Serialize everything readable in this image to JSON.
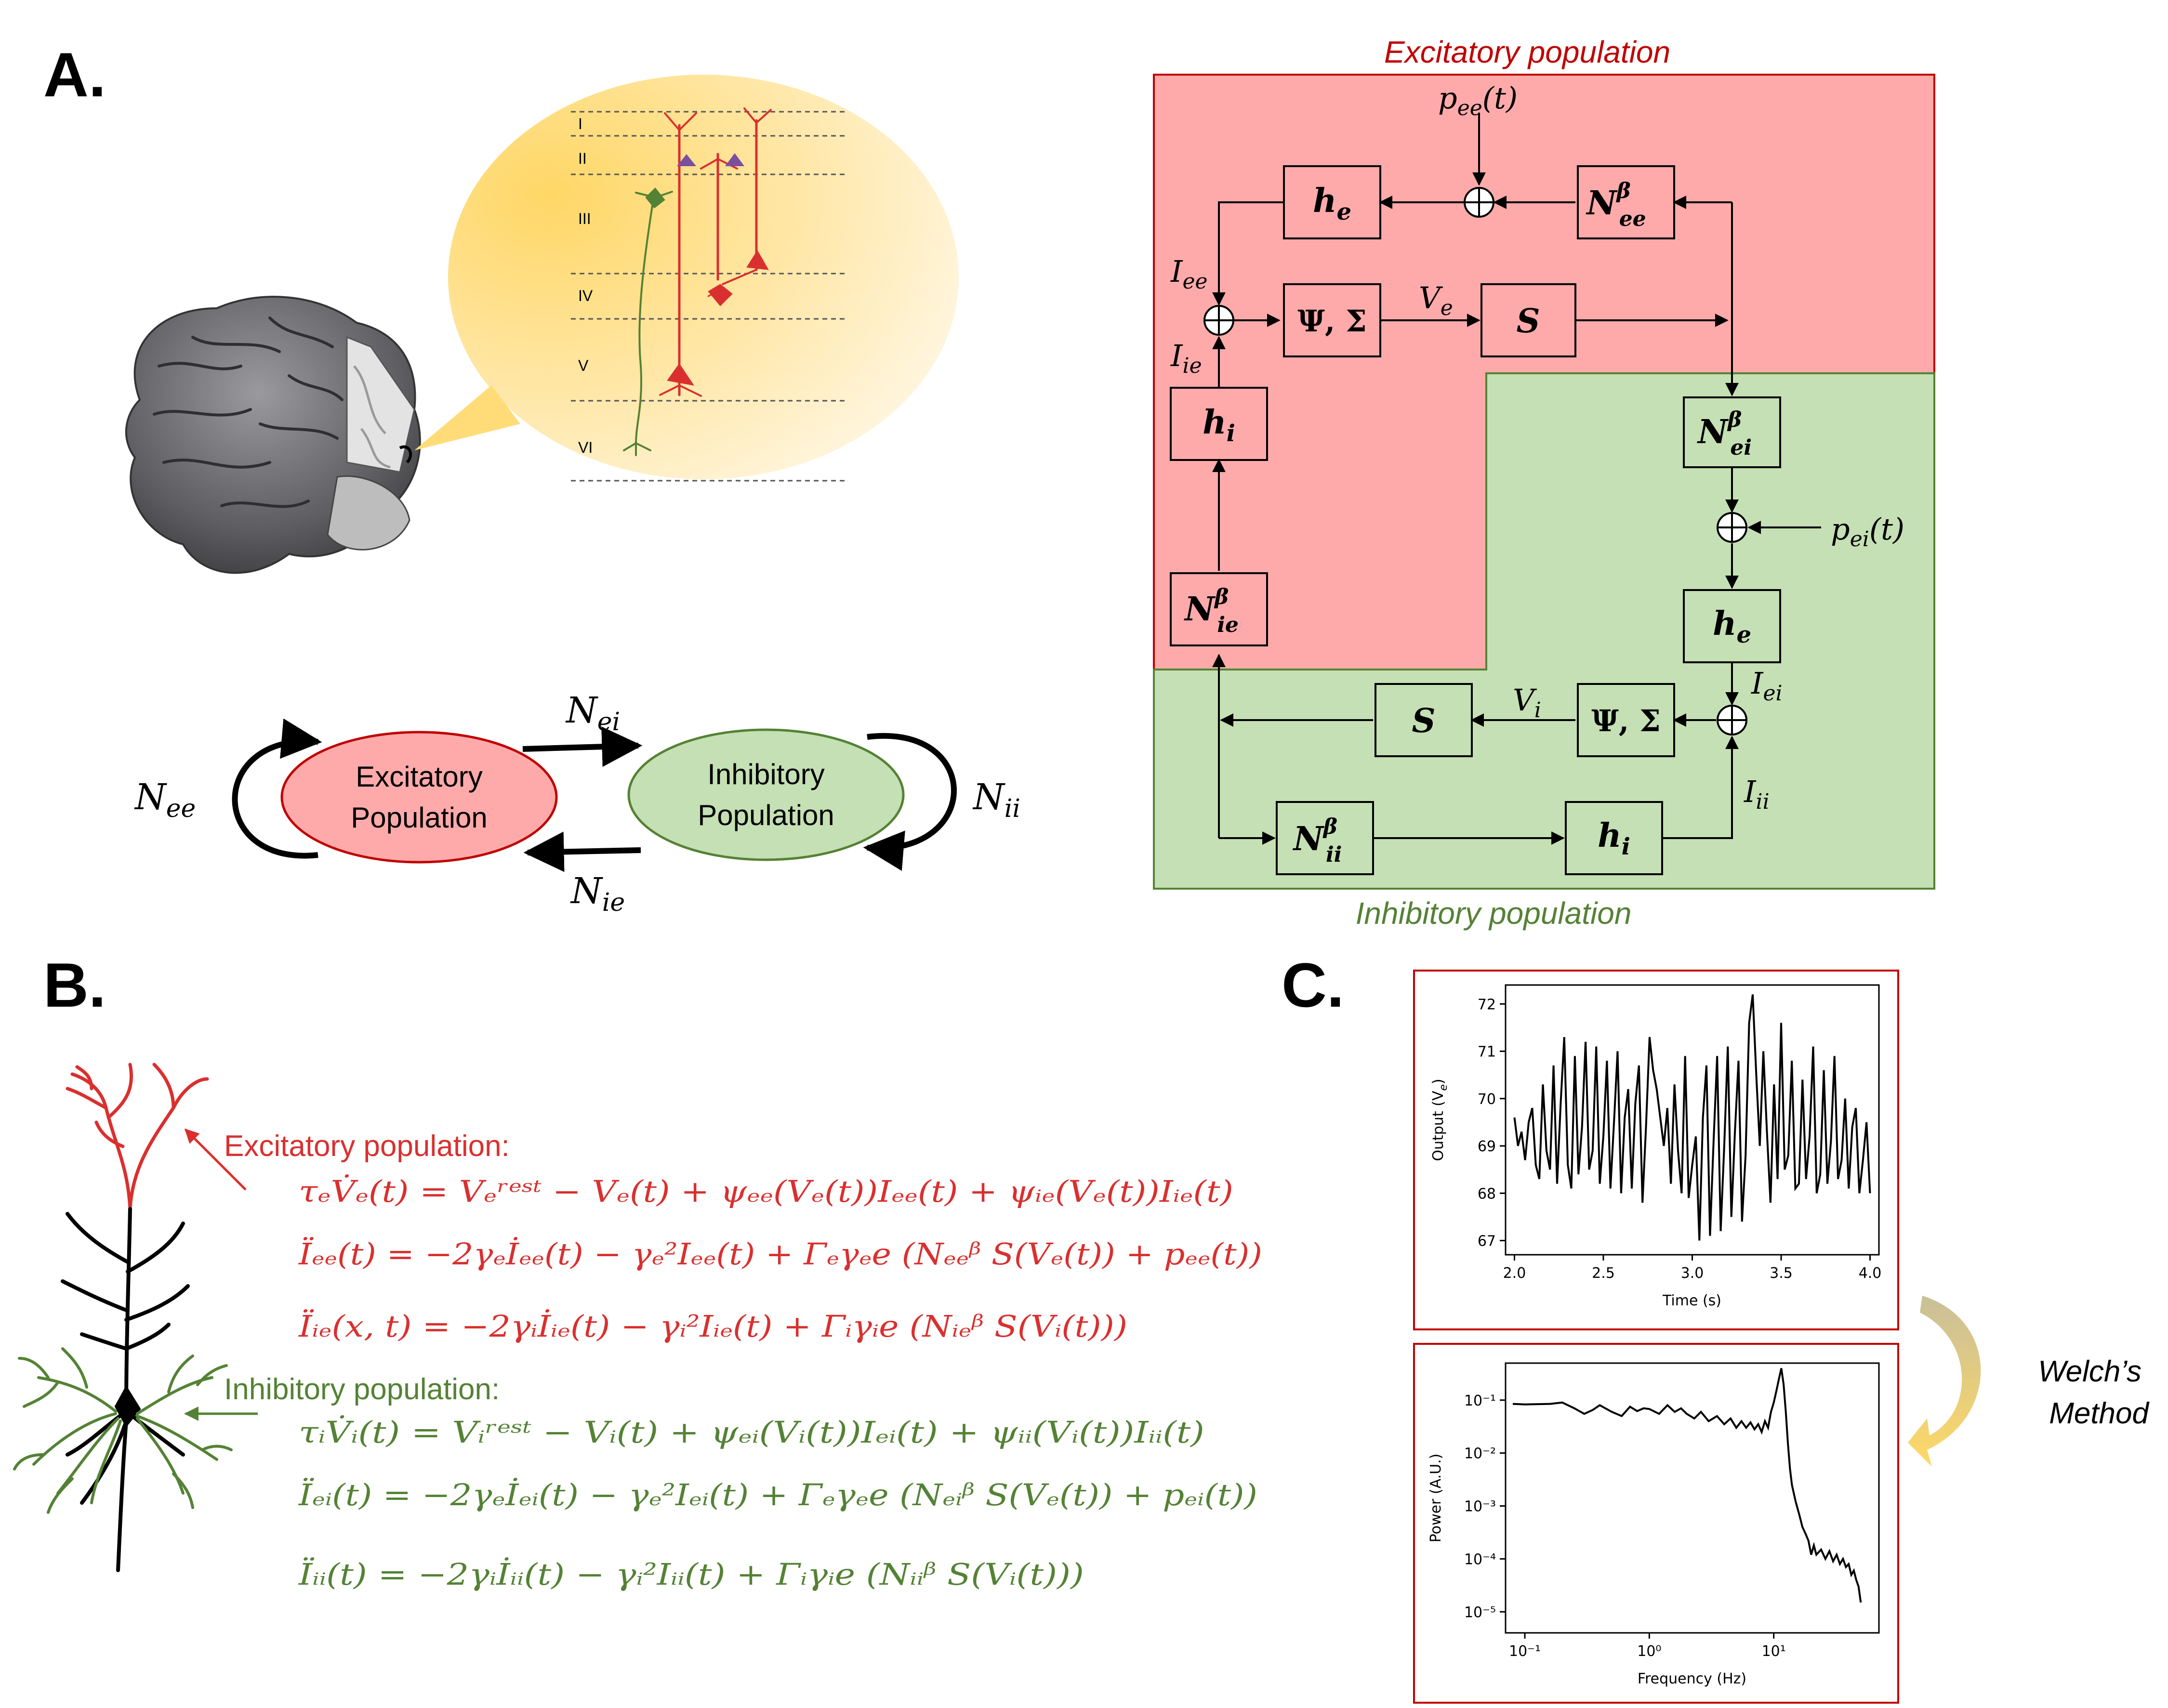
{
  "panel_labels": {
    "a": "A.",
    "b": "B.",
    "c": "C."
  },
  "cortex_layers": [
    "I",
    "II",
    "III",
    "IV",
    "V",
    "VI"
  ],
  "populations": {
    "excitatory": "Excitatory Population",
    "excitatory_line1": "Excitatory",
    "excitatory_line2": "Population",
    "inhibitory_line1": "Inhibitory",
    "inhibitory_line2": "Population",
    "n_ee": "N",
    "n_ee_sub": "ee",
    "n_ei": "N",
    "n_ei_sub": "ei",
    "n_ie": "N",
    "n_ie_sub": "ie",
    "n_ii": "N",
    "n_ii_sub": "ii"
  },
  "block_diagram": {
    "title_excitatory": "Excitatory population",
    "title_inhibitory": "Inhibitory population",
    "colors": {
      "excitatory_bg": "#ffaaaa",
      "inhibitory_bg": "#c5e0b4",
      "excitatory_border": "#c00000",
      "inhibitory_border": "#548235"
    },
    "blocks": {
      "he_top": {
        "main": "h",
        "sub": "e"
      },
      "nee": {
        "main": "N",
        "sup": "β",
        "sub": "ee"
      },
      "psi_e": {
        "main": "Ψ, Σ"
      },
      "s_e": {
        "main": "S"
      },
      "hi_left": {
        "main": "h",
        "sub": "i"
      },
      "nie": {
        "main": "N",
        "sup": "β",
        "sub": "ie"
      },
      "nei": {
        "main": "N",
        "sup": "β",
        "sub": "ei"
      },
      "he_right": {
        "main": "h",
        "sub": "e"
      },
      "psi_i": {
        "main": "Ψ, Σ"
      },
      "s_i": {
        "main": "S"
      },
      "nii": {
        "main": "N",
        "sup": "β",
        "sub": "ii"
      },
      "hi_bottom": {
        "main": "h",
        "sub": "i"
      }
    },
    "signals": {
      "pee": {
        "main": "p",
        "sub": "ee",
        "arg": "(t)"
      },
      "pei": {
        "main": "p",
        "sub": "ei",
        "arg": "(t)"
      },
      "iee": {
        "main": "I",
        "sub": "ee"
      },
      "iie": {
        "main": "I",
        "sub": "ie"
      },
      "ve": {
        "main": "V",
        "sub": "e"
      },
      "vi": {
        "main": "V",
        "sub": "i"
      },
      "iei": {
        "main": "I",
        "sub": "ei"
      },
      "iii": {
        "main": "I",
        "sub": "ii"
      }
    }
  },
  "equations": {
    "excitatory_heading": "Excitatory population:",
    "inhibitory_heading": "Inhibitory population:",
    "excitatory": [
      "τₑV̇ₑ(t) = Vₑʳᵉˢᵗ − Vₑ(t) + ψₑₑ(Vₑ(t))Iₑₑ(t) + ψᵢₑ(Vₑ(t))Iᵢₑ(t)",
      "Ïₑₑ(t) = −2γₑİₑₑ(t) − γₑ²Iₑₑ(t) + Γₑγₑe (Nₑₑᵝ S(Vₑ(t)) + pₑₑ(t))",
      "Ïᵢₑ(x, t) = −2γᵢİᵢₑ(t) − γᵢ²Iᵢₑ(t) + Γᵢγᵢe (Nᵢₑᵝ S(Vᵢ(t)))"
    ],
    "inhibitory": [
      "τᵢV̇ᵢ(t) = Vᵢʳᵉˢᵗ − Vᵢ(t) + ψₑᵢ(Vᵢ(t))Iₑᵢ(t) + ψᵢᵢ(Vᵢ(t))Iᵢᵢ(t)",
      "Ïₑᵢ(t) = −2γₑİₑᵢ(t) − γₑ²Iₑᵢ(t) + Γₑγₑe (Nₑᵢᵝ S(Vₑ(t)) + pₑᵢ(t))",
      "Ïᵢᵢ(t) = −2γᵢİᵢᵢ(t) − γᵢ²Iᵢᵢ(t) + Γᵢγᵢe (Nᵢᵢᵝ S(Vᵢ(t)))"
    ],
    "colors": {
      "excitatory": "#d9302f",
      "inhibitory": "#548235"
    }
  },
  "welch_label_line1": "Welch’s",
  "welch_label_line2": "Method",
  "chart_data": [
    {
      "type": "line",
      "xlabel": "Time (s)",
      "ylabel": "Output (V_e)",
      "ylabel_main": "Output (V",
      "ylabel_sub": "e",
      "ylabel_end": ")",
      "xlim": [
        1.95,
        4.05
      ],
      "ylim": [
        66.7,
        72.4
      ],
      "xticks": [
        2.0,
        2.5,
        3.0,
        3.5,
        4.0
      ],
      "xtick_labels": [
        "2.0",
        "2.5",
        "3.0",
        "3.5",
        "4.0"
      ],
      "yticks": [
        67,
        68,
        69,
        70,
        71,
        72
      ],
      "ytick_labels": [
        "67",
        "68",
        "69",
        "70",
        "71",
        "72"
      ],
      "x": [
        2.0,
        2.02,
        2.04,
        2.06,
        2.08,
        2.1,
        2.12,
        2.14,
        2.16,
        2.18,
        2.2,
        2.22,
        2.24,
        2.26,
        2.28,
        2.3,
        2.32,
        2.34,
        2.36,
        2.38,
        2.4,
        2.42,
        2.44,
        2.46,
        2.48,
        2.5,
        2.52,
        2.54,
        2.56,
        2.58,
        2.6,
        2.62,
        2.64,
        2.66,
        2.68,
        2.7,
        2.72,
        2.74,
        2.76,
        2.78,
        2.8,
        2.82,
        2.84,
        2.86,
        2.88,
        2.9,
        2.92,
        2.94,
        2.96,
        2.98,
        3.0,
        3.02,
        3.04,
        3.06,
        3.08,
        3.1,
        3.12,
        3.14,
        3.16,
        3.18,
        3.2,
        3.22,
        3.24,
        3.26,
        3.28,
        3.3,
        3.32,
        3.34,
        3.36,
        3.38,
        3.4,
        3.42,
        3.44,
        3.46,
        3.48,
        3.5,
        3.52,
        3.54,
        3.56,
        3.58,
        3.6,
        3.62,
        3.64,
        3.66,
        3.68,
        3.7,
        3.72,
        3.74,
        3.76,
        3.78,
        3.8,
        3.82,
        3.84,
        3.86,
        3.88,
        3.9,
        3.92,
        3.94,
        3.96,
        3.98,
        4.0
      ],
      "y": [
        69.6,
        69.0,
        69.3,
        68.7,
        69.5,
        69.8,
        68.6,
        68.3,
        70.3,
        68.9,
        68.5,
        70.7,
        68.2,
        69.9,
        71.3,
        68.6,
        68.1,
        70.9,
        68.4,
        69.4,
        71.2,
        68.5,
        68.9,
        71.1,
        68.2,
        69.2,
        70.8,
        68.1,
        69.5,
        71.0,
        68.0,
        69.6,
        70.2,
        68.1,
        69.9,
        70.7,
        67.8,
        69.4,
        71.3,
        70.6,
        70.2,
        69.6,
        69.0,
        69.8,
        68.2,
        70.3,
        68.9,
        68.0,
        70.9,
        67.9,
        68.6,
        69.2,
        67.0,
        69.6,
        70.7,
        67.1,
        69.1,
        70.9,
        67.2,
        69.0,
        71.1,
        67.5,
        69.3,
        70.8,
        67.4,
        68.8,
        71.6,
        72.2,
        70.5,
        69.0,
        71.0,
        69.3,
        67.8,
        70.3,
        68.3,
        71.6,
        68.5,
        68.8,
        70.8,
        68.1,
        68.2,
        70.4,
        68.3,
        69.2,
        71.1,
        68.0,
        68.4,
        70.6,
        68.2,
        69.1,
        70.9,
        68.3,
        68.7,
        70.0,
        68.1,
        69.4,
        69.8,
        68.0,
        68.7,
        69.5,
        68.0
      ]
    },
    {
      "type": "line",
      "xlabel": "Frequency (Hz)",
      "ylabel": "Power (A.U.)",
      "xscale": "log",
      "yscale": "log",
      "xlim": [
        0.07,
        70
      ],
      "ylim": [
        4e-06,
        0.5
      ],
      "xticks": [
        0.1,
        1,
        10
      ],
      "xtick_labels": [
        "10⁻¹",
        "10⁰",
        "10¹"
      ],
      "yticks": [
        1e-05,
        0.0001,
        0.001,
        0.01,
        0.1
      ],
      "ytick_labels": [
        "10⁻⁵",
        "10⁻⁴",
        "10⁻³",
        "10⁻²",
        "10⁻¹"
      ],
      "x": [
        0.08,
        0.1,
        0.13,
        0.16,
        0.2,
        0.25,
        0.3,
        0.35,
        0.4,
        0.5,
        0.6,
        0.7,
        0.8,
        0.9,
        1.0,
        1.2,
        1.4,
        1.6,
        1.8,
        2.0,
        2.3,
        2.6,
        3.0,
        3.5,
        4.0,
        4.5,
        5.0,
        5.5,
        6.0,
        6.5,
        7.0,
        7.5,
        8.0,
        8.5,
        9.0,
        9.5,
        10.0,
        10.5,
        11.0,
        11.5,
        12.0,
        12.5,
        13.0,
        13.5,
        14.0,
        15.0,
        16.0,
        17.0,
        18.0,
        19.0,
        20.0,
        21.0,
        22.0,
        24.0,
        26.0,
        28.0,
        30.0,
        32.0,
        34.0,
        36.0,
        38.0,
        40.0,
        42.0,
        44.0,
        46.0,
        48.0,
        50.0
      ],
      "y": [
        0.085,
        0.083,
        0.084,
        0.085,
        0.09,
        0.07,
        0.055,
        0.065,
        0.08,
        0.06,
        0.05,
        0.075,
        0.062,
        0.07,
        0.068,
        0.055,
        0.08,
        0.06,
        0.07,
        0.055,
        0.045,
        0.06,
        0.04,
        0.05,
        0.035,
        0.045,
        0.03,
        0.04,
        0.03,
        0.038,
        0.028,
        0.035,
        0.025,
        0.04,
        0.03,
        0.06,
        0.09,
        0.15,
        0.25,
        0.4,
        0.2,
        0.06,
        0.015,
        0.005,
        0.0025,
        0.0012,
        0.0007,
        0.0004,
        0.0003,
        0.00022,
        0.00012,
        0.00018,
        0.00012,
        0.00015,
        0.0001,
        0.00014,
        9e-05,
        0.00012,
        8e-05,
        0.0001,
        7e-05,
        8e-05,
        5e-05,
        6e-05,
        4e-05,
        3e-05,
        1.5e-05
      ]
    }
  ]
}
